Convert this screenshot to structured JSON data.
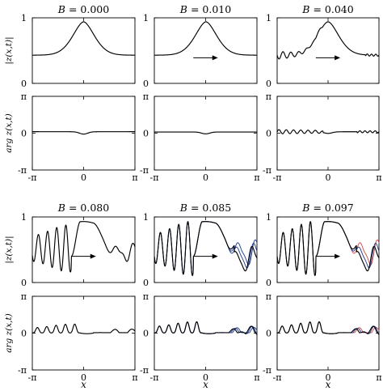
{
  "figure": {
    "colors": {
      "primary": "#000000",
      "second": "#1f3f8f",
      "third": "#e04a4a"
    },
    "ylabels": {
      "modulus": "|z(x,t)|",
      "argument": "arg z(x,t)"
    },
    "xlabel": "x",
    "xticks": [
      "-π",
      "0",
      "π"
    ],
    "yticks_modulus": [
      "0",
      "1"
    ],
    "yticks_argument": [
      "-π",
      "0",
      "π"
    ]
  },
  "chart_data": [
    {
      "type": "line",
      "title": "B = 0.000",
      "B": 0.0,
      "ylabel": "|z(x,t)|",
      "xlim": [
        -3.14159,
        3.14159
      ],
      "ylim": [
        0,
        1
      ],
      "arrow": false,
      "n_curves": 1,
      "series": [
        {
          "x": [
            -3.14159,
            -2.0,
            -1.2,
            -0.6,
            -0.2,
            0,
            0.2,
            0.6,
            1.2,
            2.0,
            3.14159
          ],
          "y": [
            0.43,
            0.47,
            0.55,
            0.72,
            0.91,
            0.94,
            0.91,
            0.72,
            0.55,
            0.47,
            0.43
          ]
        }
      ]
    },
    {
      "type": "line",
      "title": "B = 0.010",
      "B": 0.01,
      "ylabel": "|z(x,t)|",
      "xlim": [
        -3.14159,
        3.14159
      ],
      "ylim": [
        0,
        1
      ],
      "arrow": true,
      "n_curves": 1,
      "series": [
        {
          "x": [
            -3.14159,
            -2.0,
            -1.2,
            -0.6,
            -0.2,
            0,
            0.2,
            0.6,
            1.2,
            2.0,
            3.14159
          ],
          "y": [
            0.43,
            0.47,
            0.55,
            0.72,
            0.91,
            0.94,
            0.91,
            0.72,
            0.55,
            0.47,
            0.43
          ]
        }
      ]
    },
    {
      "type": "line",
      "title": "B = 0.040",
      "B": 0.04,
      "ylabel": "|z(x,t)|",
      "xlim": [
        -3.14159,
        3.14159
      ],
      "ylim": [
        0,
        1
      ],
      "arrow": true,
      "n_curves": 1,
      "series": [
        {
          "x": [
            -3.14159,
            -2.5,
            -1.8,
            -1.0,
            -0.3,
            0,
            0.3,
            1.0,
            1.8,
            2.5,
            3.14159
          ],
          "y": [
            0.4,
            0.48,
            0.62,
            0.62,
            0.9,
            0.94,
            0.9,
            0.65,
            0.5,
            0.44,
            0.42
          ]
        }
      ]
    },
    {
      "type": "line",
      "title": "",
      "B": 0.0,
      "ylabel": "arg z(x,t)",
      "xlim": [
        -3.14159,
        3.14159
      ],
      "ylim": [
        -3.14159,
        3.14159
      ],
      "n_curves": 1,
      "series": [
        {
          "x": [
            -3.14159,
            -1.5,
            -0.5,
            0,
            0.5,
            1.5,
            3.14159
          ],
          "y": [
            0.12,
            0.06,
            0.0,
            -0.18,
            0.0,
            0.06,
            0.12
          ]
        }
      ]
    },
    {
      "type": "line",
      "title": "",
      "B": 0.01,
      "ylabel": "arg z(x,t)",
      "xlim": [
        -3.14159,
        3.14159
      ],
      "ylim": [
        -3.14159,
        3.14159
      ],
      "n_curves": 1,
      "series": [
        {
          "x": [
            -3.14159,
            -1.5,
            -0.5,
            0,
            0.5,
            1.5,
            3.14159
          ],
          "y": [
            0.1,
            0.05,
            0.0,
            -0.15,
            0.0,
            0.05,
            0.1
          ]
        }
      ]
    },
    {
      "type": "line",
      "title": "",
      "B": 0.04,
      "ylabel": "arg z(x,t)",
      "xlim": [
        -3.14159,
        3.14159
      ],
      "ylim": [
        -3.14159,
        3.14159
      ],
      "n_curves": 1,
      "series": [
        {
          "x": [
            -3.14159,
            -2.0,
            -1.0,
            0,
            1.0,
            2.0,
            3.14159
          ],
          "y": [
            0.15,
            0.18,
            0.25,
            -0.12,
            0.12,
            0.1,
            0.12
          ]
        }
      ]
    },
    {
      "type": "line",
      "title": "B = 0.080",
      "B": 0.08,
      "ylabel": "|z(x,t)|",
      "xlim": [
        -3.14159,
        3.14159
      ],
      "ylim": [
        0,
        1
      ],
      "arrow": true,
      "n_curves": 1,
      "series": [
        {
          "x": [
            -3.14159,
            -2.4,
            -1.6,
            -0.6,
            0,
            0.6,
            1.2,
            2.0,
            2.6,
            3.14159
          ],
          "y": [
            0.2,
            0.55,
            0.2,
            0.8,
            0.92,
            0.85,
            0.4,
            0.25,
            0.5,
            0.3
          ]
        }
      ]
    },
    {
      "type": "line",
      "title": "B = 0.085",
      "B": 0.085,
      "ylabel": "|z(x,t)|",
      "xlim": [
        -3.14159,
        3.14159
      ],
      "ylim": [
        0,
        1
      ],
      "arrow": true,
      "n_curves": 3,
      "series": [
        {
          "x": [
            -3.14159,
            -2.4,
            -1.6,
            -0.6,
            0,
            0.6,
            1.2,
            2.0,
            2.6,
            3.14159
          ],
          "y": [
            0.1,
            0.6,
            0.1,
            0.85,
            0.93,
            0.88,
            0.55,
            0.3,
            0.65,
            0.4
          ]
        }
      ]
    },
    {
      "type": "line",
      "title": "B = 0.097",
      "B": 0.097,
      "ylabel": "|z(x,t)|",
      "xlim": [
        -3.14159,
        3.14159
      ],
      "ylim": [
        0,
        1
      ],
      "arrow": true,
      "n_curves": 3,
      "series": [
        {
          "x": [
            -3.14159,
            -2.4,
            -1.6,
            -0.6,
            0,
            0.6,
            1.2,
            2.0,
            2.6,
            3.14159
          ],
          "y": [
            0.08,
            0.62,
            0.08,
            0.86,
            0.93,
            0.9,
            0.6,
            0.25,
            0.7,
            0.35
          ]
        }
      ]
    },
    {
      "type": "line",
      "title": "",
      "B": 0.08,
      "ylabel": "arg z(x,t)",
      "xlim": [
        -3.14159,
        3.14159
      ],
      "ylim": [
        -3.14159,
        3.14159
      ],
      "n_curves": 1,
      "series": [
        {
          "x": [
            -3.14159,
            -2.0,
            -1.0,
            0,
            1.0,
            2.0,
            3.14159
          ],
          "y": [
            0.0,
            0.5,
            0.6,
            0.0,
            0.05,
            0.3,
            0.05
          ]
        }
      ]
    },
    {
      "type": "line",
      "title": "",
      "B": 0.085,
      "ylabel": "arg z(x,t)",
      "xlim": [
        -3.14159,
        3.14159
      ],
      "ylim": [
        -3.14159,
        3.14159
      ],
      "n_curves": 3,
      "series": [
        {
          "x": [
            -3.14159,
            -2.0,
            -1.0,
            0,
            1.0,
            2.0,
            3.14159
          ],
          "y": [
            0.0,
            0.7,
            0.7,
            0.0,
            0.05,
            0.4,
            0.1
          ]
        }
      ]
    },
    {
      "type": "line",
      "title": "",
      "B": 0.097,
      "ylabel": "arg z(x,t)",
      "xlim": [
        -3.14159,
        3.14159
      ],
      "ylim": [
        -3.14159,
        3.14159
      ],
      "n_curves": 3,
      "series": [
        {
          "x": [
            -3.14159,
            -2.0,
            -1.0,
            0,
            1.0,
            2.0,
            3.14159
          ],
          "y": [
            0.0,
            0.8,
            0.8,
            0.0,
            0.05,
            0.5,
            0.1
          ]
        }
      ]
    }
  ]
}
